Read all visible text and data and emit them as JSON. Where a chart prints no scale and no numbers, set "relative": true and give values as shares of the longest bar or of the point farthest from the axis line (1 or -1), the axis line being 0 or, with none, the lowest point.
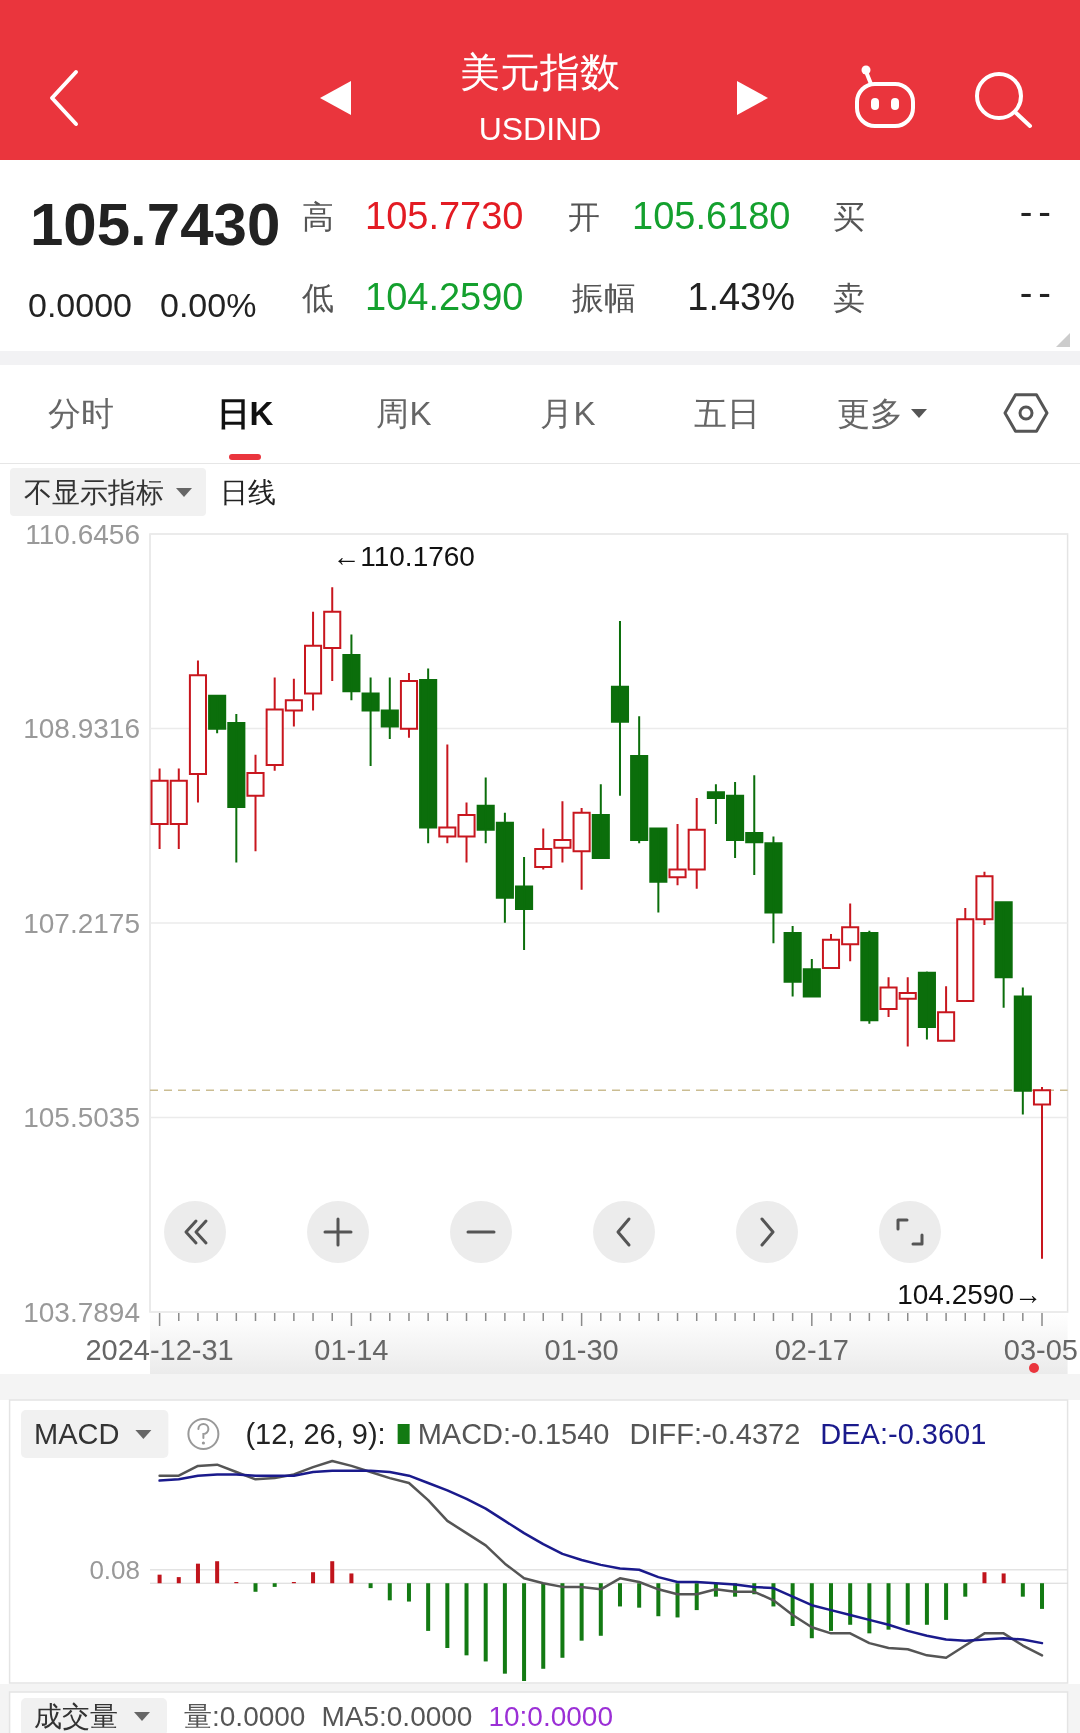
{
  "chart_data": [
    {
      "type": "other",
      "title": "美元指数",
      "subtitle": "USDIND",
      "annotations": [
        "105.7430",
        "0.0000",
        "0.00%",
        "高",
        "105.7730",
        "开",
        "105.6180",
        "买",
        "--",
        "低",
        "104.2590",
        "振幅",
        "1.43%",
        "卖",
        "--",
        "分时",
        "日K",
        "周K",
        "月K",
        "五日",
        "更多"
      ],
      "colors": [
        "#222222",
        "#222222",
        "#222222",
        "#555555",
        "#e31b23",
        "#555555",
        "#14a02e",
        "#555555",
        "#222222",
        "#555555",
        "#14a02e",
        "#555555",
        "#222222",
        "#555555",
        "#222222",
        "#666666",
        "#111111",
        "#666666",
        "#666666",
        "#666666",
        "#666666"
      ]
    },
    {
      "type": "candlestick",
      "title": "日线",
      "annotations": [
        "不显示指标",
        "←110.1760",
        {
          "text": "104.2590→",
          "x": "03-05",
          "y": 104.259
        }
      ],
      "categories": [
        "2024-12-31",
        null,
        null,
        null,
        null,
        null,
        null,
        null,
        null,
        null,
        "01-14",
        null,
        null,
        null,
        null,
        null,
        null,
        null,
        null,
        null,
        null,
        null,
        "01-30",
        null,
        null,
        null,
        null,
        null,
        null,
        null,
        null,
        null,
        null,
        null,
        "02-17",
        null,
        null,
        null,
        null,
        null,
        null,
        null,
        null,
        null,
        null,
        null,
        "03-05"
      ],
      "ohlc": [
        [
          108.09,
          108.58,
          107.87,
          108.47
        ],
        [
          108.09,
          108.58,
          107.87,
          108.47
        ],
        [
          108.53,
          109.53,
          108.28,
          109.4
        ],
        [
          109.22,
          109.23,
          108.89,
          108.93
        ],
        [
          108.98,
          109.06,
          107.75,
          108.24
        ],
        [
          108.34,
          108.7,
          107.85,
          108.54
        ],
        [
          108.61,
          109.38,
          108.56,
          109.1
        ],
        [
          109.09,
          109.37,
          108.95,
          109.18
        ],
        [
          109.24,
          109.96,
          109.09,
          109.66
        ],
        [
          109.64,
          110.176,
          109.35,
          109.96
        ],
        [
          109.58,
          109.76,
          109.18,
          109.26
        ],
        [
          109.24,
          109.38,
          108.6,
          109.09
        ],
        [
          109.09,
          109.38,
          108.84,
          108.95
        ],
        [
          108.93,
          109.42,
          108.85,
          109.35
        ],
        [
          109.36,
          109.46,
          107.92,
          108.06
        ],
        [
          107.98,
          108.79,
          107.92,
          108.06
        ],
        [
          107.98,
          108.28,
          107.75,
          108.17
        ],
        [
          108.25,
          108.5,
          107.92,
          108.04
        ],
        [
          108.1,
          108.19,
          107.22,
          107.44
        ],
        [
          107.54,
          107.8,
          106.98,
          107.34
        ],
        [
          107.71,
          108.05,
          107.69,
          107.87
        ],
        [
          107.88,
          108.29,
          107.75,
          107.95
        ],
        [
          107.85,
          108.23,
          107.51,
          108.19
        ],
        [
          108.17,
          108.44,
          107.79,
          107.79
        ],
        [
          109.3,
          109.88,
          108.34,
          108.99
        ],
        [
          108.69,
          109.04,
          107.92,
          107.95
        ],
        [
          108.05,
          108.05,
          107.31,
          107.58
        ],
        [
          107.62,
          108.09,
          107.55,
          107.69
        ],
        [
          107.69,
          108.32,
          107.52,
          108.04
        ],
        [
          108.37,
          108.44,
          108.09,
          108.32
        ],
        [
          108.34,
          108.46,
          107.79,
          107.95
        ],
        [
          108.01,
          108.52,
          107.64,
          107.93
        ],
        [
          107.92,
          107.98,
          107.04,
          107.31
        ],
        [
          107.13,
          107.19,
          106.57,
          106.7
        ],
        [
          106.81,
          106.9,
          106.57,
          106.57
        ],
        [
          106.82,
          107.12,
          106.82,
          107.07
        ],
        [
          107.03,
          107.39,
          106.88,
          107.18
        ],
        [
          107.13,
          107.15,
          106.33,
          106.36
        ],
        [
          106.46,
          106.74,
          106.39,
          106.65
        ],
        [
          106.55,
          106.74,
          106.13,
          106.6
        ],
        [
          106.78,
          106.79,
          106.19,
          106.3
        ],
        [
          106.18,
          106.66,
          106.18,
          106.43
        ],
        [
          106.53,
          107.35,
          106.53,
          107.25
        ],
        [
          107.25,
          107.67,
          107.2,
          107.63
        ],
        [
          107.4,
          107.41,
          106.47,
          106.74
        ],
        [
          106.57,
          106.65,
          105.53,
          105.74
        ],
        [
          105.618,
          105.773,
          104.259,
          105.743
        ]
      ],
      "colors": [
        "#c8161e",
        "#c8161e",
        "#c8161e",
        "#0b6e0b",
        "#0b6e0b",
        "#c8161e",
        "#c8161e",
        "#c8161e",
        "#c8161e",
        "#c8161e",
        "#0b6e0b",
        "#0b6e0b",
        "#0b6e0b",
        "#c8161e",
        "#0b6e0b",
        "#c8161e",
        "#c8161e",
        "#0b6e0b",
        "#0b6e0b",
        "#0b6e0b",
        "#c8161e",
        "#c8161e",
        "#c8161e",
        "#0b6e0b",
        "#0b6e0b",
        "#0b6e0b",
        "#0b6e0b",
        "#c8161e",
        "#c8161e",
        "#0b6e0b",
        "#0b6e0b",
        "#0b6e0b",
        "#0b6e0b",
        "#0b6e0b",
        "#0b6e0b",
        "#c8161e",
        "#c8161e",
        "#0b6e0b",
        "#c8161e",
        "#c8161e",
        "#0b6e0b",
        "#c8161e",
        "#c8161e",
        "#c8161e",
        "#0b6e0b",
        "#0b6e0b",
        "#c8161e"
      ],
      "ylim": [
        103.7894,
        110.6456
      ],
      "yticks": [
        110.6456,
        108.9316,
        107.2175,
        105.5035,
        103.7894
      ],
      "grid": "y",
      "ref_lines": [
        {
          "axis": "y",
          "value": 105.743,
          "color": "#cbbd92",
          "line_style": "dashed"
        }
      ]
    },
    {
      "type": "bar",
      "title": "MACD",
      "legend_title": "(12, 26, 9):",
      "legend": "top",
      "relative": true,
      "annotations": [
        "0.08"
      ],
      "categories": [
        null,
        null,
        null,
        null,
        null,
        null,
        null,
        null,
        null,
        null,
        null,
        null,
        null,
        null,
        null,
        null,
        null,
        null,
        null,
        null,
        null,
        null,
        null,
        null,
        null,
        null,
        null,
        null,
        null,
        null,
        null,
        null,
        null,
        null,
        null,
        null,
        null,
        null,
        null,
        null,
        null,
        null,
        null,
        null,
        null,
        null,
        null
      ],
      "series": [
        {
          "name": "MACD:-0.1540",
          "values": [
            0.07,
            0.05,
            0.16,
            0.18,
            0.01,
            -0.07,
            -0.03,
            0.01,
            0.09,
            0.18,
            0.08,
            -0.04,
            -0.14,
            -0.15,
            -0.39,
            -0.53,
            -0.59,
            -0.64,
            -0.74,
            -0.8,
            -0.7,
            -0.61,
            -0.47,
            -0.43,
            -0.19,
            -0.2,
            -0.27,
            -0.28,
            -0.22,
            -0.11,
            -0.11,
            -0.09,
            -0.19,
            -0.35,
            -0.45,
            -0.39,
            -0.34,
            -0.41,
            -0.38,
            -0.34,
            -0.34,
            -0.3,
            -0.11,
            0.09,
            0.08,
            -0.11,
            -0.21
          ],
          "colors": [
            "#c0141c",
            "#c0141c",
            "#c0141c",
            "#c0141c",
            "#c0141c",
            "#137a13",
            "#137a13",
            "#c0141c",
            "#c0141c",
            "#c0141c",
            "#c0141c",
            "#137a13",
            "#137a13",
            "#137a13",
            "#137a13",
            "#137a13",
            "#137a13",
            "#137a13",
            "#137a13",
            "#137a13",
            "#137a13",
            "#137a13",
            "#137a13",
            "#137a13",
            "#137a13",
            "#137a13",
            "#137a13",
            "#137a13",
            "#137a13",
            "#137a13",
            "#137a13",
            "#137a13",
            "#137a13",
            "#137a13",
            "#137a13",
            "#137a13",
            "#137a13",
            "#137a13",
            "#137a13",
            "#137a13",
            "#137a13",
            "#137a13",
            "#137a13",
            "#c0141c",
            "#c0141c",
            "#137a13",
            "#137a13"
          ]
        },
        {
          "name": "DIFF:-0.4372",
          "type": "line",
          "color": "#555555",
          "values": [
            0.88,
            0.88,
            0.96,
            0.97,
            0.91,
            0.85,
            0.86,
            0.89,
            0.95,
            1,
            0.96,
            0.91,
            0.86,
            0.82,
            0.68,
            0.51,
            0.41,
            0.31,
            0.16,
            0.04,
            0,
            -0.03,
            -0.03,
            -0.05,
            0.04,
            0.01,
            -0.05,
            -0.09,
            -0.09,
            -0.05,
            -0.07,
            -0.07,
            -0.14,
            -0.26,
            -0.36,
            -0.41,
            -0.41,
            -0.49,
            -0.53,
            -0.54,
            -0.59,
            -0.61,
            -0.51,
            -0.41,
            -0.41,
            -0.51,
            -0.59
          ]
        },
        {
          "name": "DEA:-0.3601",
          "type": "line",
          "color": "#1a1a8c",
          "values": [
            0.84,
            0.85,
            0.88,
            0.89,
            0.89,
            0.88,
            0.88,
            0.88,
            0.91,
            0.92,
            0.92,
            0.92,
            0.91,
            0.88,
            0.82,
            0.76,
            0.69,
            0.61,
            0.51,
            0.41,
            0.32,
            0.24,
            0.19,
            0.15,
            0.12,
            0.11,
            0.05,
            0.01,
            0.01,
            0,
            -0.01,
            -0.03,
            -0.04,
            -0.11,
            -0.18,
            -0.22,
            -0.26,
            -0.3,
            -0.34,
            -0.39,
            -0.43,
            -0.46,
            -0.47,
            -0.46,
            -0.45,
            -0.46,
            -0.49
          ]
        }
      ],
      "ref_lines": [
        {
          "axis": "y",
          "value": 0.11,
          "color": "#e3e3e3"
        }
      ]
    },
    {
      "type": "other",
      "title": "成交量",
      "annotations": [
        "量:0.0000",
        "MA5:0.0000",
        "10:0.0000"
      ],
      "colors": [
        "#555555",
        "#555555",
        "#9b2fd6"
      ]
    }
  ]
}
